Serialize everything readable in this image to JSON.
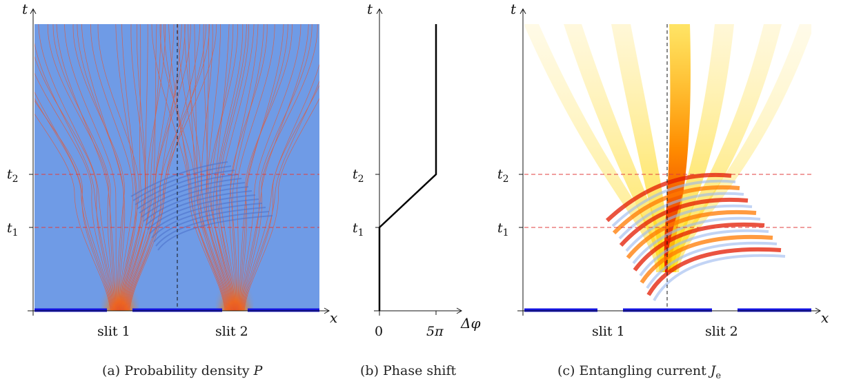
{
  "panels": {
    "a": {
      "caption": "(a) Probability density P",
      "axis_x": "x",
      "axis_y": "t",
      "t1_label": "t1",
      "t2_label": "t2",
      "slit1_label": "slit 1",
      "slit2_label": "slit 2"
    },
    "b": {
      "caption": "(b) Phase shift",
      "axis_x": "Δφ",
      "axis_y": "t",
      "t1_label": "t1",
      "t2_label": "t2",
      "tick_0": "0",
      "tick_5pi": "5π"
    },
    "c": {
      "caption": "(c) Entangling current Je",
      "axis_x": "x",
      "axis_y": "t",
      "t1_label": "t1",
      "t2_label": "t2",
      "slit1_label": "slit 1",
      "slit2_label": "slit 2"
    }
  },
  "phase_shift": {
    "x_ticks": [
      0,
      "5π"
    ],
    "profile": [
      {
        "t": "0",
        "phi": 0
      },
      {
        "t": "t1",
        "phi": 0
      },
      {
        "t": "t2",
        "phi": "5π"
      },
      {
        "t": "end",
        "phi": "5π"
      }
    ]
  },
  "colors": {
    "barrier": "#1414e0",
    "background_density": "#6f9be6",
    "trajectory": "#e05a3a",
    "time_marker": "#e03c3c",
    "hot": "#e61e00",
    "warm": "#ffd200",
    "cold": "#6f9be6"
  }
}
